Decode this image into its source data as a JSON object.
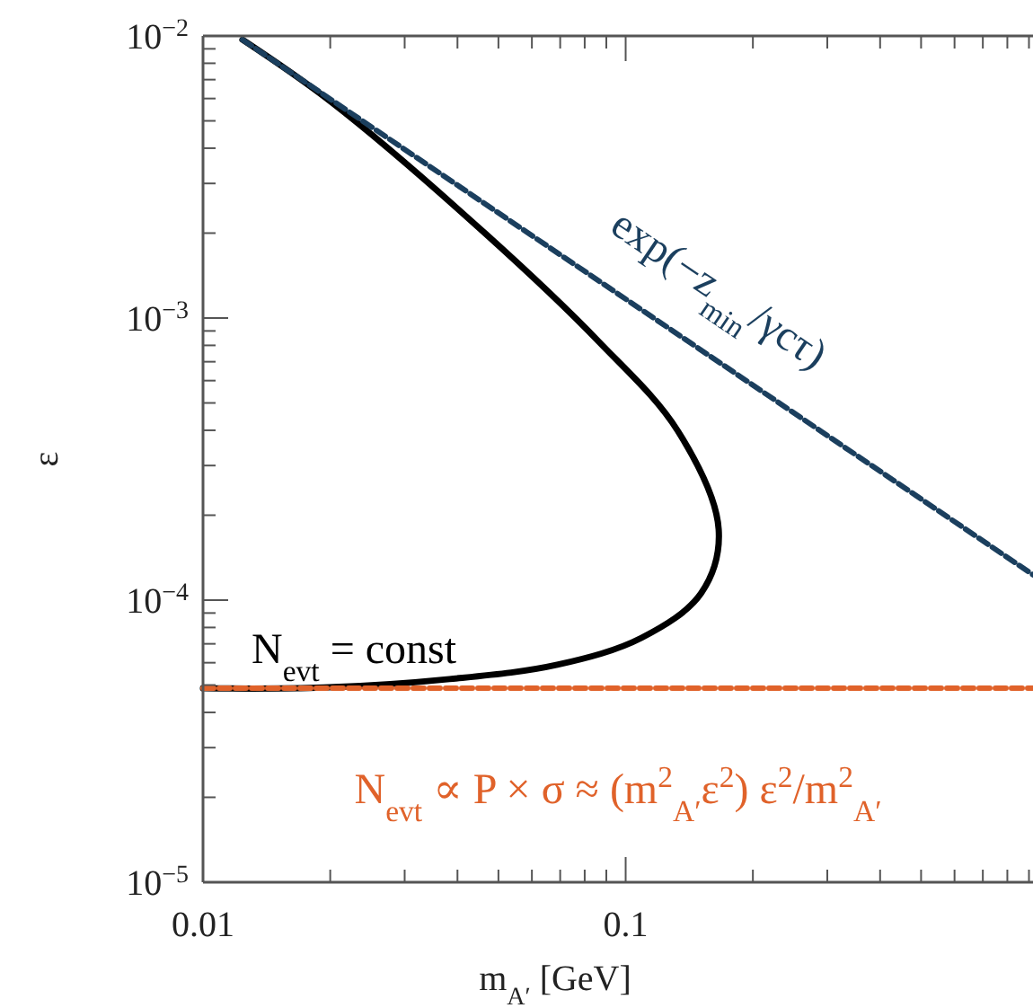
{
  "chart_data": {
    "type": "line",
    "log": "xy",
    "xlabel": "m$_{A′}$ [GeV]",
    "ylabel": "ε",
    "xlim": [
      0.01,
      0.92
    ],
    "ylim": [
      1e-05,
      0.01
    ],
    "xticks": [
      0.01,
      0.1,
      {
        "value": 0.02,
        "label": null
      },
      {
        "value": 0.03,
        "label": null
      },
      {
        "value": 0.04,
        "label": null
      },
      {
        "value": 0.05,
        "label": null
      },
      {
        "value": 0.06,
        "label": null
      },
      {
        "value": 0.07,
        "label": null
      },
      {
        "value": 0.08,
        "label": null
      },
      {
        "value": 0.09,
        "label": null
      },
      {
        "value": 0.2,
        "label": null
      },
      {
        "value": 0.3,
        "label": null
      },
      {
        "value": 0.4,
        "label": null
      },
      {
        "value": 0.5,
        "label": null
      },
      {
        "value": 0.6,
        "label": null
      },
      {
        "value": 0.7,
        "label": null
      },
      {
        "value": 0.8,
        "label": null
      },
      {
        "value": 0.9,
        "label": null
      }
    ],
    "yticks": [
      {
        "value": 0.01,
        "label": "10$^{−2}$"
      },
      {
        "value": 0.001,
        "label": "10$^{−3}$"
      },
      {
        "value": 0.0001,
        "label": "10$^{−4}$"
      },
      {
        "value": 1e-05,
        "label": "10$^{−5}$"
      },
      {
        "value": 0.002,
        "label": null
      },
      {
        "value": 0.003,
        "label": null
      },
      {
        "value": 0.004,
        "label": null
      },
      {
        "value": 0.005,
        "label": null
      },
      {
        "value": 0.006,
        "label": null
      },
      {
        "value": 0.007,
        "label": null
      },
      {
        "value": 0.008,
        "label": null
      },
      {
        "value": 0.009,
        "label": null
      },
      {
        "value": 0.0002,
        "label": null
      },
      {
        "value": 0.0003,
        "label": null
      },
      {
        "value": 0.0004,
        "label": null
      },
      {
        "value": 0.0005,
        "label": null
      },
      {
        "value": 0.0006,
        "label": null
      },
      {
        "value": 0.0007,
        "label": null
      },
      {
        "value": 0.0008,
        "label": null
      },
      {
        "value": 0.0009,
        "label": null
      },
      {
        "value": 2e-05,
        "label": null
      },
      {
        "value": 3e-05,
        "label": null
      },
      {
        "value": 4e-05,
        "label": null
      },
      {
        "value": 5e-05,
        "label": null
      },
      {
        "value": 6e-05,
        "label": null
      },
      {
        "value": 7e-05,
        "label": null
      },
      {
        "value": 8e-05,
        "label": null
      },
      {
        "value": 9e-05,
        "label": null
      }
    ],
    "series": [
      {
        "color": "#000000",
        "line_style": "solid",
        "x": [
          0.0124,
          0.0202,
          0.0466,
          0.0863,
          0.133,
          0.166,
          0.151,
          0.109,
          0.0689,
          0.0383,
          0.0193,
          0.01
        ],
        "values": [
          0.0097,
          0.0058,
          0.00199,
          0.000826,
          0.000397,
          0.000178,
          0.000106,
          7.35e-05,
          5.9e-05,
          5.25e-05,
          4.9e-05,
          4.87e-05
        ]
      },
      {
        "color": "#1b3f5e",
        "line_style": "dashed",
        "x": [
          0.0124,
          0.92
        ],
        "values": [
          0.0097,
          0.000123
        ]
      },
      {
        "color": "#e0622a",
        "line_style": "dashed",
        "x": [
          0.01,
          0.92
        ],
        "values": [
          4.87e-05,
          4.87e-05
        ]
      }
    ],
    "annotations": [
      "exp(−z$_{min}$/γcτ)",
      "N$_{evt}$ = const",
      "N$_{evt}$ ∝ P × σ ≈ (m$^{2}$$_{A′}$ε$^{2}$) ε$^{2}$/m$^{2}$$_{A′}$"
    ]
  }
}
